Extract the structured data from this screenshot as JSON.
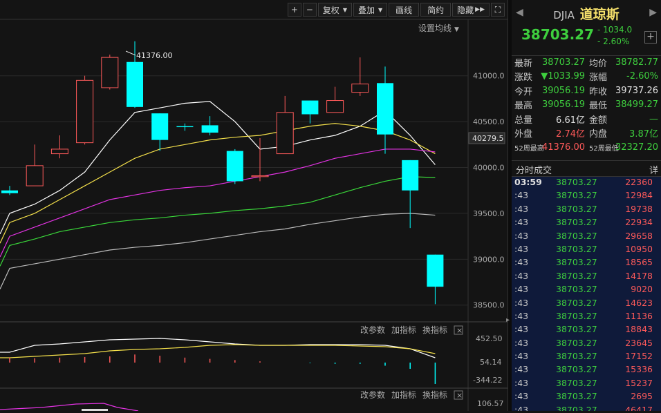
{
  "toolbar": {
    "zoom_in": "+",
    "zoom_out": "−",
    "fuquan": "复权",
    "overlay": "叠加",
    "draw": "画线",
    "brief": "简约",
    "hide": "隐藏",
    "fullscreen": "⛶"
  },
  "chart": {
    "settings_label": "设置均线",
    "high_label": "41376.00",
    "current_price_label": "40279.5",
    "y_ticks": [
      "41000.0",
      "40500.0",
      "40000.0",
      "39500.0",
      "39000.0",
      "38500.0"
    ],
    "sub1": {
      "edit": "改参数",
      "add": "加指标",
      "change": "换指标",
      "close": "×",
      "ticks": [
        "452.50",
        "54.14",
        "-344.22"
      ]
    },
    "sub2": {
      "edit": "改参数",
      "add": "加指标",
      "change": "换指标",
      "close": "×",
      "ticks": [
        "106.57"
      ]
    }
  },
  "chart_data": {
    "type": "candlestick",
    "title": "",
    "y_range": [
      38400,
      41600
    ],
    "candles": [
      {
        "o": 39750,
        "h": 39800,
        "l": 39700,
        "c": 39720
      },
      {
        "o": 39800,
        "h": 40250,
        "l": 39800,
        "c": 40020
      },
      {
        "o": 40150,
        "h": 40350,
        "l": 40100,
        "c": 40200
      },
      {
        "o": 40270,
        "h": 41000,
        "l": 40250,
        "c": 40950
      },
      {
        "o": 40870,
        "h": 41230,
        "l": 40850,
        "c": 41200
      },
      {
        "o": 41150,
        "h": 41376,
        "l": 40650,
        "c": 40660
      },
      {
        "o": 40590,
        "h": 40590,
        "l": 40180,
        "c": 40300
      },
      {
        "o": 40450,
        "h": 40480,
        "l": 40400,
        "c": 40440
      },
      {
        "o": 40460,
        "h": 40560,
        "l": 40350,
        "c": 40380
      },
      {
        "o": 40180,
        "h": 40200,
        "l": 39820,
        "c": 39850
      },
      {
        "o": 39900,
        "h": 40320,
        "l": 39850,
        "c": 39910
      },
      {
        "o": 40150,
        "h": 40780,
        "l": 40150,
        "c": 40600
      },
      {
        "o": 40730,
        "h": 40730,
        "l": 40480,
        "c": 40580
      },
      {
        "o": 40600,
        "h": 40880,
        "l": 40600,
        "c": 40730
      },
      {
        "o": 40820,
        "h": 41200,
        "l": 40780,
        "c": 40910
      },
      {
        "o": 40920,
        "h": 41100,
        "l": 40150,
        "c": 40360
      },
      {
        "o": 40080,
        "h": 40080,
        "l": 39340,
        "c": 39750
      },
      {
        "o": 39050,
        "h": 39050,
        "l": 38510,
        "c": 38700
      }
    ],
    "ma_series": [
      {
        "color": "#ffffff",
        "values": [
          39500,
          39600,
          39750,
          39950,
          40300,
          40600,
          40650,
          40700,
          40720,
          40500,
          40200,
          40230,
          40300,
          40350,
          40450,
          40620,
          40350,
          40030
        ]
      },
      {
        "color": "#f5e14b",
        "values": [
          39400,
          39500,
          39650,
          39800,
          39950,
          40100,
          40200,
          40250,
          40300,
          40330,
          40350,
          40400,
          40450,
          40480,
          40450,
          40400,
          40300,
          40150
        ]
      },
      {
        "color": "#e433e4",
        "values": [
          39250,
          39350,
          39450,
          39550,
          39650,
          39700,
          39750,
          39780,
          39800,
          39850,
          39900,
          39950,
          40020,
          40100,
          40150,
          40200,
          40200,
          40170
        ]
      },
      {
        "color": "#3ad93a",
        "values": [
          39150,
          39220,
          39300,
          39350,
          39400,
          39430,
          39450,
          39480,
          39500,
          39530,
          39550,
          39580,
          39620,
          39700,
          39780,
          39850,
          39900,
          39890
        ]
      },
      {
        "color": "#bbbbbb",
        "values": [
          38900,
          38950,
          39000,
          39050,
          39100,
          39130,
          39150,
          39180,
          39220,
          39260,
          39300,
          39330,
          39380,
          39420,
          39460,
          39490,
          39500,
          39480
        ]
      }
    ],
    "sub_bars": [
      80,
      70,
      80,
      90,
      100,
      130,
      110,
      80,
      60,
      40,
      20,
      0,
      -10,
      -20,
      -20,
      -50,
      -100,
      -344
    ]
  },
  "ticker": {
    "code": "DJIA",
    "name": "道琼斯",
    "price": "38703.27",
    "change": "- 1034.0",
    "change_pct": "- 2.60%",
    "add": "+"
  },
  "stats": [
    {
      "l1": "最新",
      "v1": "38703.27",
      "c1": "#3ecf3e",
      "l2": "均价",
      "v2": "38782.77",
      "c2": "#3ecf3e"
    },
    {
      "l1": "涨跌",
      "v1": "▼1033.99",
      "c1": "#3ecf3e",
      "l2": "涨幅",
      "v2": "-2.60%",
      "c2": "#3ecf3e"
    },
    {
      "l1": "今开",
      "v1": "39056.19",
      "c1": "#3ecf3e",
      "l2": "昨收",
      "v2": "39737.26",
      "c2": "#e0e0e0"
    },
    {
      "l1": "最高",
      "v1": "39056.19",
      "c1": "#3ecf3e",
      "l2": "最低",
      "v2": "38499.27",
      "c2": "#3ecf3e"
    },
    {
      "l1": "总量",
      "v1": "6.61亿",
      "c1": "#e0e0e0",
      "l2": "金额",
      "v2": "—",
      "c2": "#3ecf3e"
    },
    {
      "l1": "外盘",
      "v1": "2.74亿",
      "c1": "#ff5a5a",
      "l2": "内盘",
      "v2": "3.87亿",
      "c2": "#3ecf3e"
    },
    {
      "l1": "52周最高",
      "v1": "41376.00",
      "c1": "#ff5a5a",
      "l2": "52周最低",
      "v2": "32327.20",
      "c2": "#3ecf3e"
    }
  ],
  "ticks_header": {
    "title": "分时成交",
    "detail": "详"
  },
  "ticks": [
    {
      "t": "03:59",
      "p": "38703.27",
      "v": "22360"
    },
    {
      "t": ":43",
      "p": "38703.27",
      "v": "12984"
    },
    {
      "t": ":43",
      "p": "38703.27",
      "v": "19738"
    },
    {
      "t": ":43",
      "p": "38703.27",
      "v": "22934"
    },
    {
      "t": ":43",
      "p": "38703.27",
      "v": "29658"
    },
    {
      "t": ":43",
      "p": "38703.27",
      "v": "10950"
    },
    {
      "t": ":43",
      "p": "38703.27",
      "v": "18565"
    },
    {
      "t": ":43",
      "p": "38703.27",
      "v": "14178"
    },
    {
      "t": ":43",
      "p": "38703.27",
      "v": "9020"
    },
    {
      "t": ":43",
      "p": "38703.27",
      "v": "14623"
    },
    {
      "t": ":43",
      "p": "38703.27",
      "v": "11136"
    },
    {
      "t": ":43",
      "p": "38703.27",
      "v": "18843"
    },
    {
      "t": ":43",
      "p": "38703.27",
      "v": "23645"
    },
    {
      "t": ":43",
      "p": "38703.27",
      "v": "17152"
    },
    {
      "t": ":43",
      "p": "38703.27",
      "v": "15336"
    },
    {
      "t": ":43",
      "p": "38703.27",
      "v": "15237"
    },
    {
      "t": ":43",
      "p": "38703.27",
      "v": "2695"
    },
    {
      "t": ":43",
      "p": "38703.27",
      "v": "46417"
    }
  ]
}
